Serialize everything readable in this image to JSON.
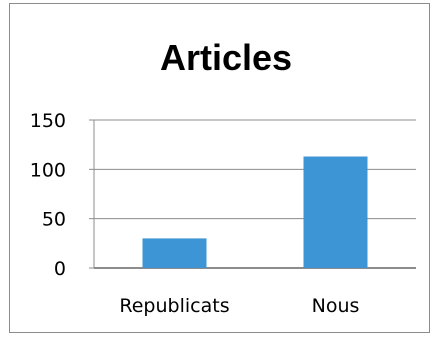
{
  "chart_data": {
    "type": "bar",
    "title": "Articles",
    "categories": [
      "Republicats",
      "Nous"
    ],
    "values": [
      30,
      113
    ],
    "ylim": [
      0,
      150
    ],
    "yticks": [
      0,
      50,
      100,
      150
    ],
    "grid": true,
    "legend": "none",
    "bar_color": "#3e95d5"
  }
}
